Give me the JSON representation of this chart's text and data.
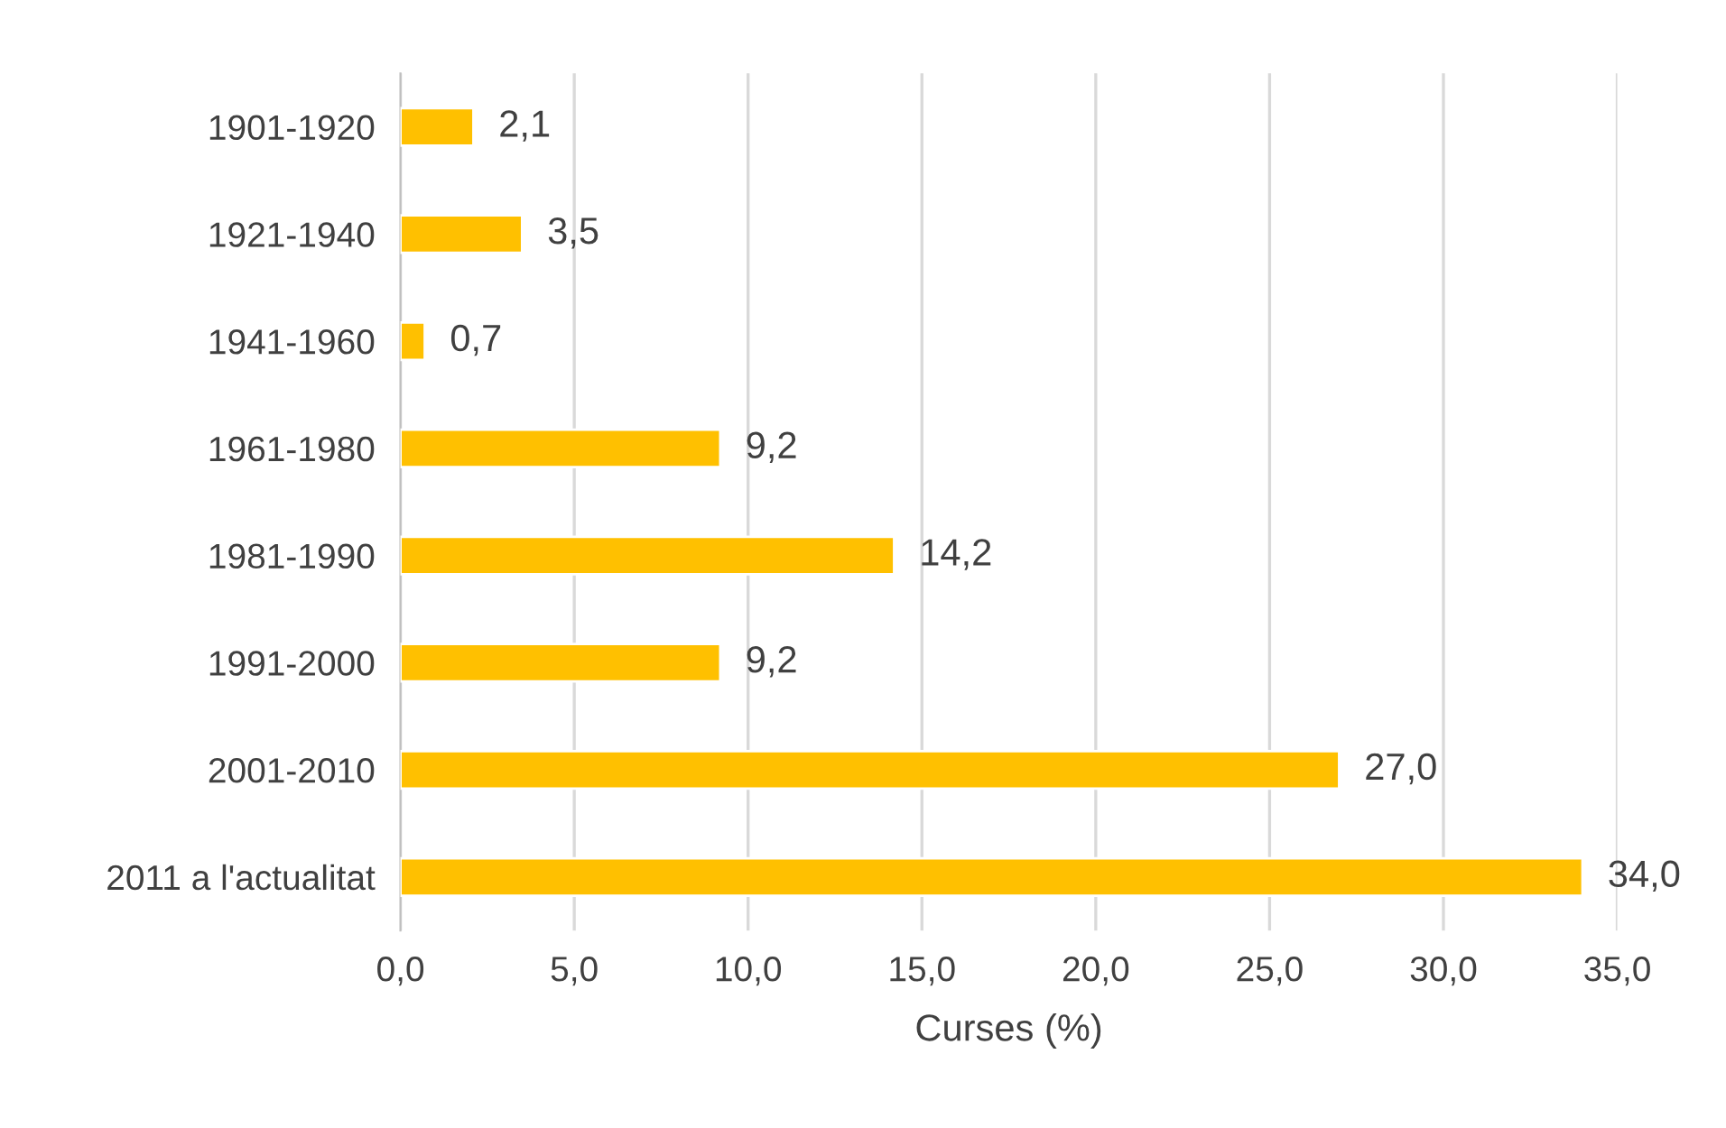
{
  "chart_data": {
    "type": "bar",
    "orientation": "horizontal",
    "xlabel": "Curses (%)",
    "categories": [
      "1901-1920",
      "1921-1940",
      "1941-1960",
      "1961-1980",
      "1981-1990",
      "1991-2000",
      "2001-2010",
      "2011 a l'actualitat"
    ],
    "values": [
      2.1,
      3.5,
      0.7,
      9.2,
      14.2,
      9.2,
      27.0,
      34.0
    ],
    "value_labels": [
      "2,1",
      "3,5",
      "0,7",
      "9,2",
      "14,2",
      "9,2",
      "27,0",
      "34,0"
    ],
    "color": "#ffc000",
    "xlim": [
      0,
      35
    ],
    "xticks": [
      {
        "value": 0,
        "label": "0,0"
      },
      {
        "value": 5,
        "label": "5,0"
      },
      {
        "value": 10,
        "label": "10,0"
      },
      {
        "value": 15,
        "label": "15,0"
      },
      {
        "value": 20,
        "label": "20,0"
      },
      {
        "value": 25,
        "label": "25,0"
      },
      {
        "value": 30,
        "label": "30,0"
      },
      {
        "value": 35,
        "label": "35,0"
      }
    ],
    "grid": "x",
    "legend": false
  }
}
